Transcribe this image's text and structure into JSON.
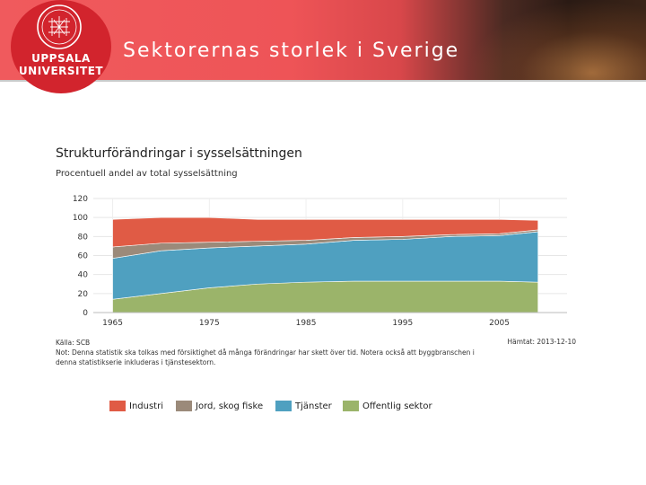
{
  "header": {
    "title": "Sektorernas storlek i Sverige",
    "logo": {
      "line1": "UPPSALA",
      "line2": "UNIVERSITET",
      "icon": "university-seal-icon"
    }
  },
  "colors": {
    "brand": "#d2242d",
    "banner": "#ee5457"
  },
  "chart_data": {
    "type": "area",
    "title": "Strukturförändringar i sysselsättningen",
    "subtitle": "Procentuell andel av total sysselsättning",
    "xlabel": "",
    "ylabel": "",
    "xlim": [
      1963,
      2012
    ],
    "ylim": [
      0,
      120
    ],
    "y_ticks": [
      0,
      20,
      40,
      60,
      80,
      100,
      120
    ],
    "x_ticks": [
      1965,
      1975,
      1985,
      1995,
      2005
    ],
    "grid": true,
    "legend_position": "bottom",
    "stacked": true,
    "x": [
      1965,
      1970,
      1975,
      1980,
      1985,
      1990,
      1995,
      2000,
      2005,
      2009
    ],
    "series": [
      {
        "name": "Offentlig sektor",
        "color": "#9bb46a",
        "values": [
          14,
          20,
          26,
          30,
          32,
          33,
          33,
          33,
          33,
          32
        ]
      },
      {
        "name": "Tjänster",
        "color": "#4fa0c0",
        "values": [
          43,
          45,
          42,
          40,
          40,
          43,
          44,
          47,
          48,
          53
        ]
      },
      {
        "name": "Jord, skog fiske",
        "color": "#9b8a7a",
        "values": [
          12,
          8,
          6,
          5,
          4,
          3,
          3,
          2,
          2,
          2
        ]
      },
      {
        "name": "Industri",
        "color": "#e05b45",
        "values": [
          29,
          27,
          26,
          23,
          22,
          19,
          18,
          16,
          15,
          10
        ]
      }
    ],
    "legend_order": [
      "Industri",
      "Jord, skog fiske",
      "Tjänster",
      "Offentlig sektor"
    ]
  },
  "footer": {
    "source": "Källa: SCB",
    "note": "Not: Denna statistik ska tolkas med försiktighet då många förändringar har skett över tid. Notera också att byggbranschen i denna statistikserie inkluderas i tjänstesektorn.",
    "fetched": "Hämtat: 2013-12-10"
  }
}
